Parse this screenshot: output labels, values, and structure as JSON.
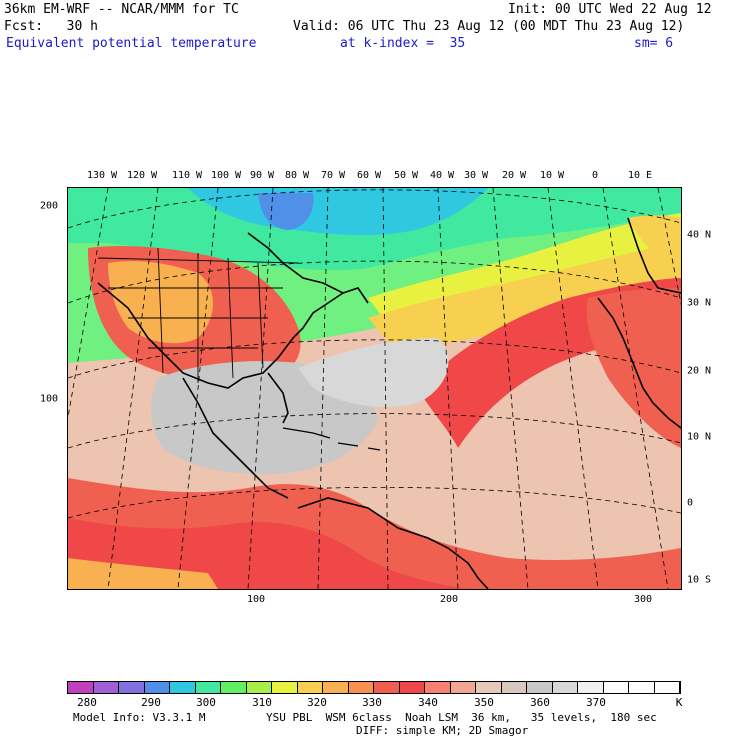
{
  "header": {
    "model_line": "36km EM-WRF -- NCAR/MMM for TC",
    "init_line": "Init: 00 UTC Wed 22 Aug 12",
    "fcst_line": "Fcst:   30 h",
    "valid_line": "Valid: 06 UTC Thu 23 Aug 12 (00 MDT Thu 23 Aug 12)",
    "field_name": "Equivalent potential temperature",
    "k_index": "at k-index =  35",
    "smoothing": "sm= 6"
  },
  "map": {
    "lon_labels": [
      "130 W",
      "120 W",
      "110 W",
      "100 W",
      "90 W",
      "80 W",
      "70 W",
      "60 W",
      "50 W",
      "40 W",
      "30 W",
      "20 W",
      "10 W",
      "0",
      "10 E"
    ],
    "lat_labels": [
      "40 N",
      "30 N",
      "20 N",
      "10 N",
      "0",
      "10 S"
    ],
    "grid_y_labels": [
      "200",
      "100"
    ],
    "grid_x_labels": [
      "100",
      "200",
      "300"
    ]
  },
  "colorbar": {
    "colors": [
      "#c040c0",
      "#a060d8",
      "#8070e0",
      "#5090e8",
      "#30c8e0",
      "#40e8a0",
      "#60f060",
      "#a8f048",
      "#e8f040",
      "#f8d050",
      "#f8b050",
      "#f89050",
      "#f06050",
      "#f04848",
      "#f88070",
      "#f0a890",
      "#e8c8b8",
      "#d8c8c0",
      "#c8c8c8",
      "#d8d8d8",
      "#f0f0f0",
      "#ffffff",
      "#ffffff",
      "#ffffff"
    ],
    "labels": [
      "280",
      "290",
      "300",
      "310",
      "320",
      "330",
      "340",
      "350",
      "360",
      "370"
    ],
    "unit": "K"
  },
  "footer": {
    "model_info": "Model Info: V3.3.1 M",
    "physics_line1": "YSU PBL  WSM 6class  Noah LSM  36 km,   35 levels,  180 sec",
    "physics_line2": "DIFF: simple KM; 2D Smagor"
  }
}
